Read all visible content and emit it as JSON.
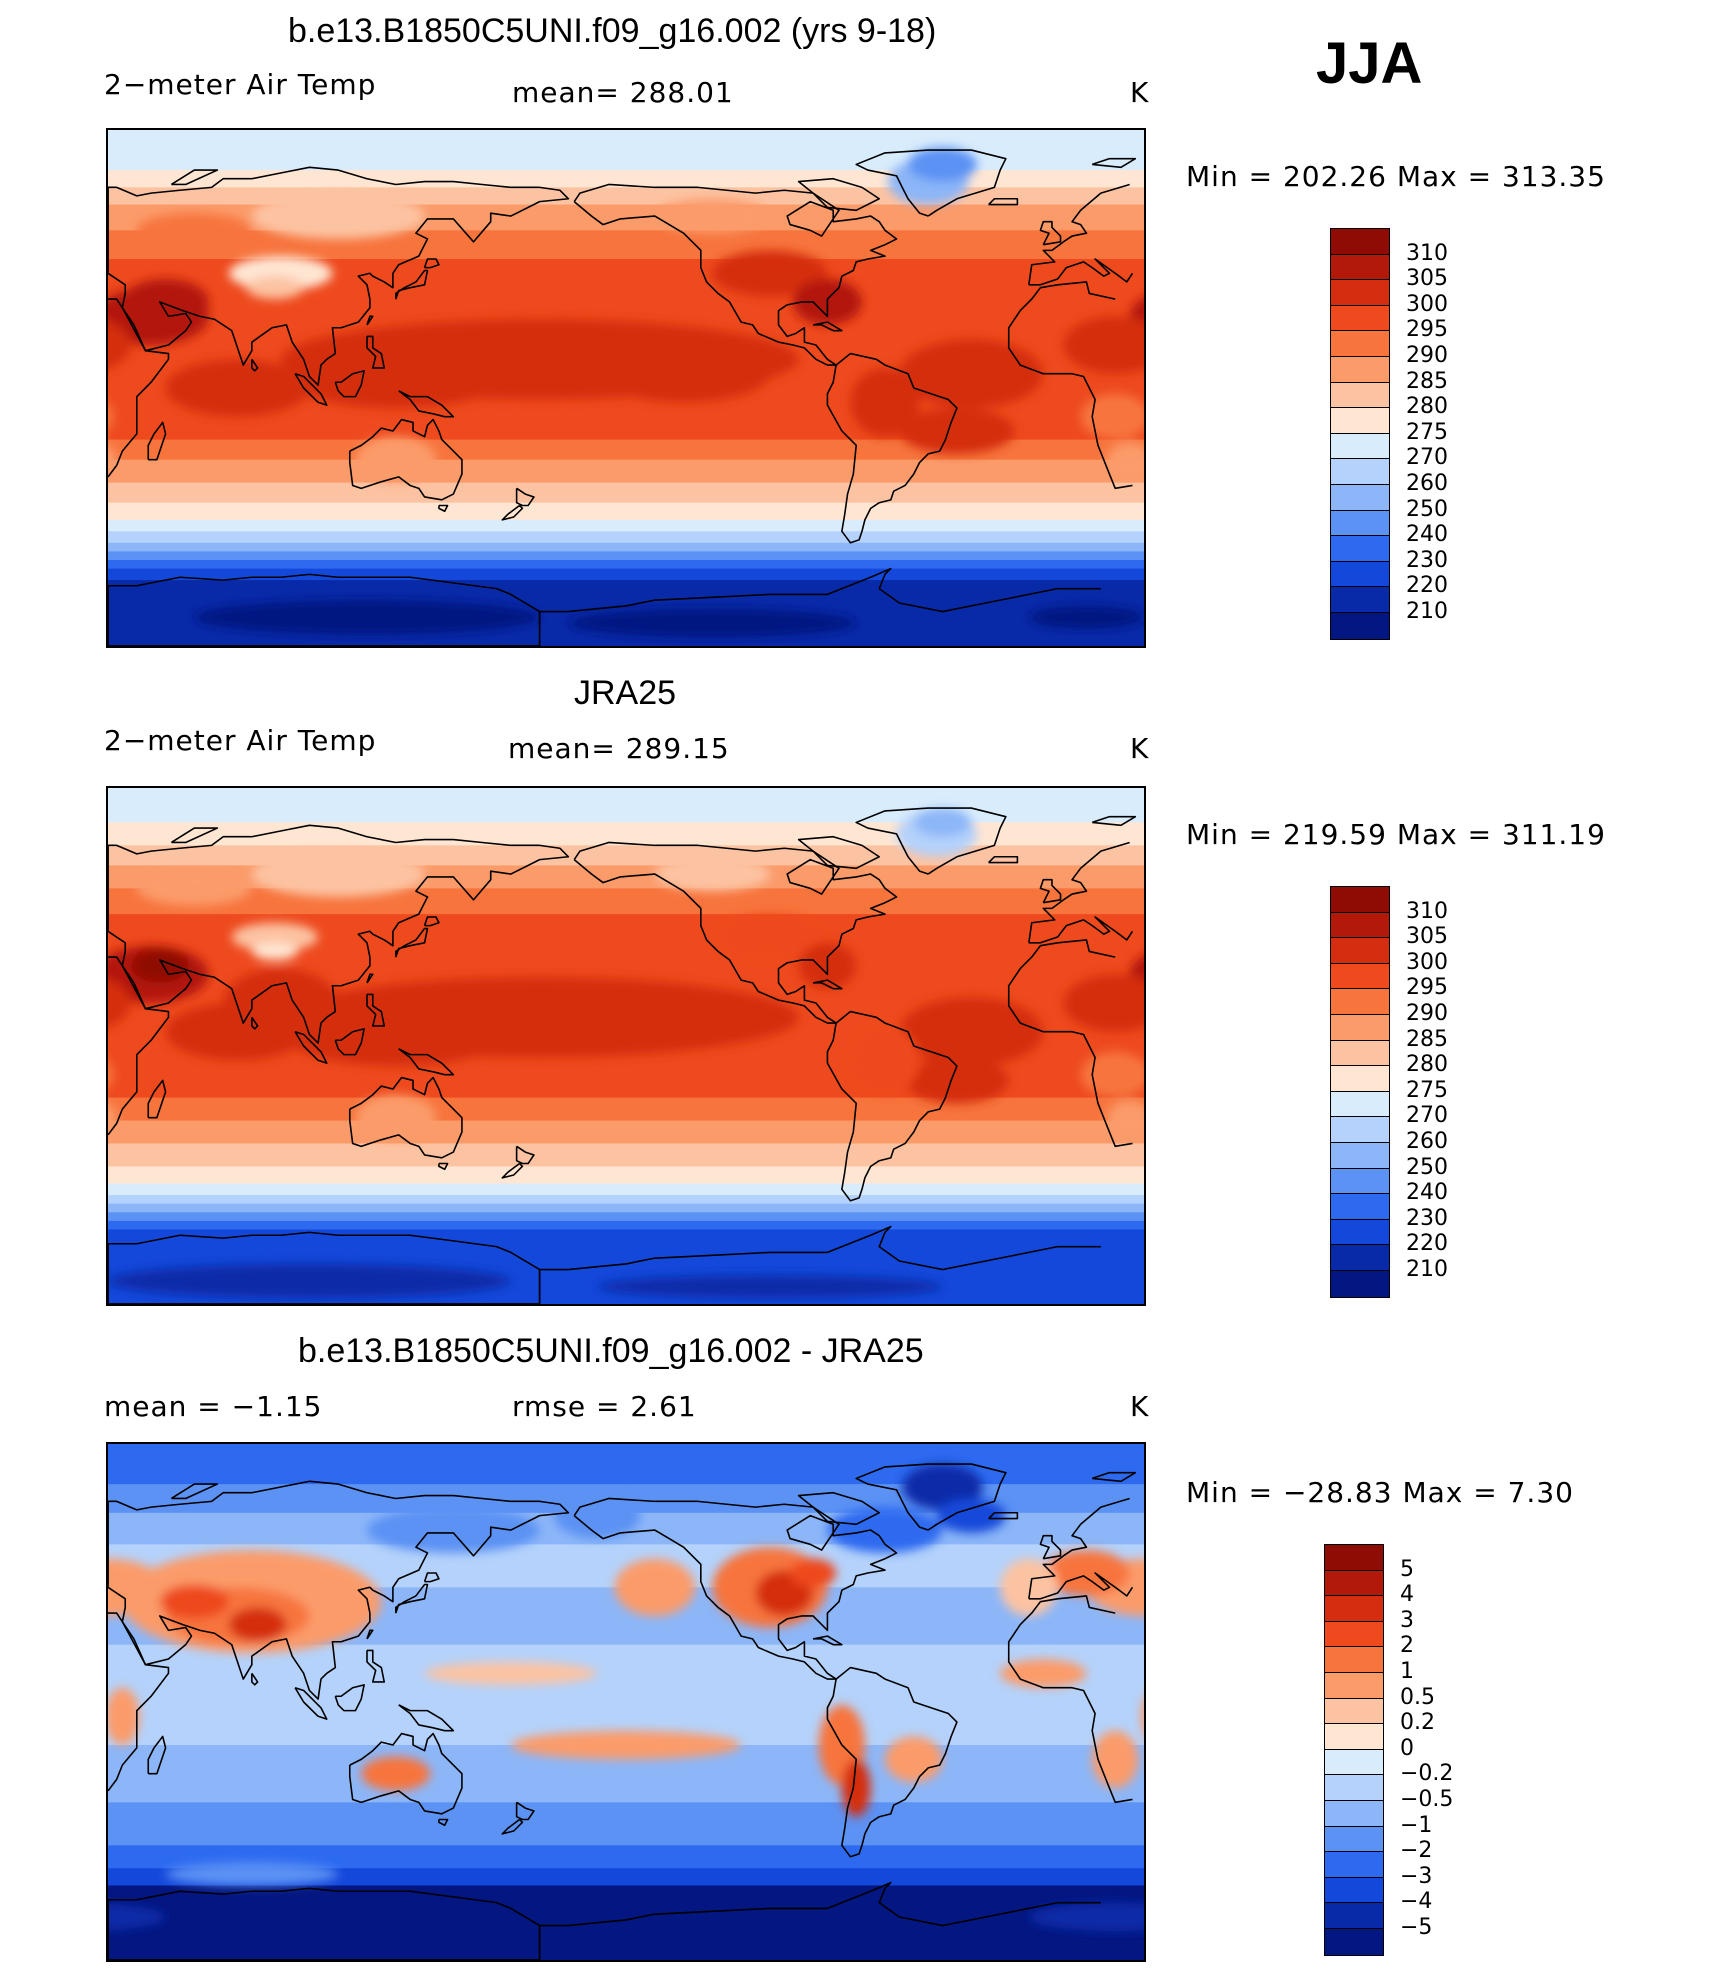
{
  "season": "JJA",
  "panels": [
    {
      "title": "b.e13.B1850C5UNI.f09_g16.002 (yrs 9-18)",
      "left_label": "2−meter Air Temp",
      "center_label": "mean=  288.01",
      "unit": "K",
      "minmax": "Min  =  202.26  Max  =  313.35",
      "map_name": "model-temperature-map",
      "field": "model",
      "colorbar_labels": [
        "310",
        "305",
        "300",
        "295",
        "290",
        "285",
        "280",
        "275",
        "270",
        "260",
        "250",
        "240",
        "230",
        "220",
        "210"
      ],
      "colorbar_colors": [
        "#8f0c05",
        "#b3190b",
        "#d42d0f",
        "#ee4a1e",
        "#f7743d",
        "#fb9b6a",
        "#fcc3a2",
        "#fee6d3",
        "#d9ecfc",
        "#b4d2fb",
        "#8cb6f8",
        "#5c92f4",
        "#2d6af0",
        "#1448da",
        "#082aa8",
        "#031681"
      ]
    },
    {
      "title": "JRA25",
      "left_label": "2−meter Air Temp",
      "center_label": "mean=  289.15",
      "unit": "K",
      "minmax": "Min  =  219.59  Max  =  311.19",
      "map_name": "jra25-temperature-map",
      "field": "obs",
      "colorbar_labels": [
        "310",
        "305",
        "300",
        "295",
        "290",
        "285",
        "280",
        "275",
        "270",
        "260",
        "250",
        "240",
        "230",
        "220",
        "210"
      ],
      "colorbar_colors": [
        "#8f0c05",
        "#b3190b",
        "#d42d0f",
        "#ee4a1e",
        "#f7743d",
        "#fb9b6a",
        "#fcc3a2",
        "#fee6d3",
        "#d9ecfc",
        "#b4d2fb",
        "#8cb6f8",
        "#5c92f4",
        "#2d6af0",
        "#1448da",
        "#082aa8",
        "#031681"
      ]
    },
    {
      "title": "b.e13.B1850C5UNI.f09_g16.002 - JRA25",
      "left_label": "mean  =    −1.15",
      "center_label": "rmse  =     2.61",
      "unit": "K",
      "minmax": "Min  =  −28.83  Max  =      7.30",
      "map_name": "difference-map",
      "field": "diff",
      "colorbar_labels": [
        "5",
        "4",
        "3",
        "2",
        "1",
        "0.5",
        "0.2",
        "0",
        "−0.2",
        "−0.5",
        "−1",
        "−2",
        "−3",
        "−4",
        "−5"
      ],
      "colorbar_colors": [
        "#8f0c05",
        "#b3190b",
        "#d42d0f",
        "#ee4a1e",
        "#f7743d",
        "#fb9b6a",
        "#fcc3a2",
        "#fee6d3",
        "#d9ecfc",
        "#b4d2fb",
        "#8cb6f8",
        "#5c92f4",
        "#2d6af0",
        "#1448da",
        "#082aa8",
        "#031681"
      ]
    }
  ]
}
